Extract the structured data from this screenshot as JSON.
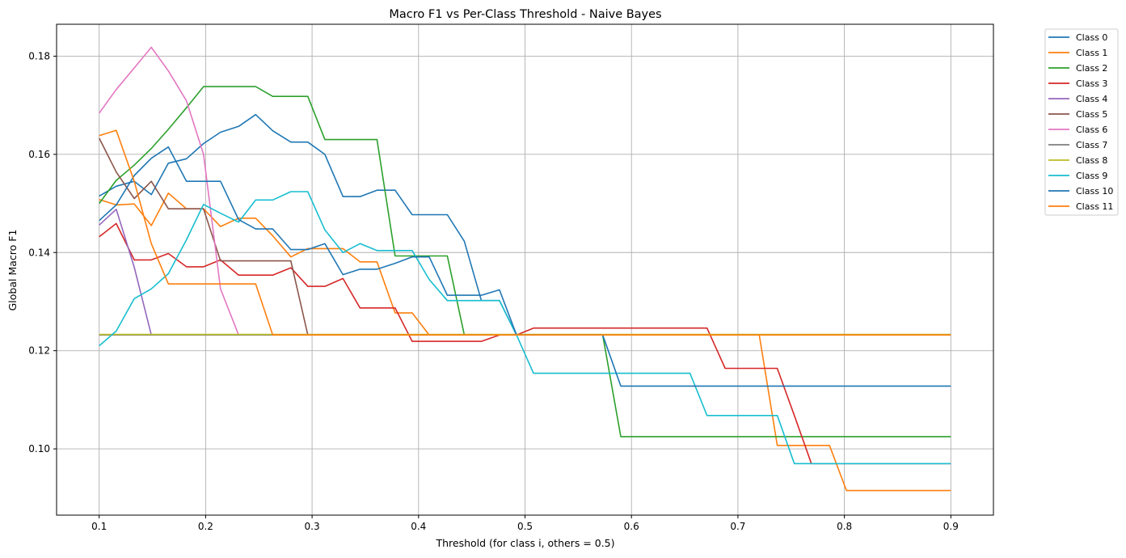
{
  "chart_data": {
    "type": "line",
    "title": "Macro F1 vs Per-Class Threshold - Naive Bayes",
    "xlabel": "Threshold (for class i, others = 0.5)",
    "ylabel": "Global Macro F1",
    "xlim": [
      0.06,
      0.94
    ],
    "ylim": [
      0.0865,
      0.1865
    ],
    "xticks": [
      0.1,
      0.2,
      0.3,
      0.4,
      0.5,
      0.6,
      0.7,
      0.8,
      0.9
    ],
    "xtick_labels": [
      "0.1",
      "0.2",
      "0.3",
      "0.4",
      "0.5",
      "0.6",
      "0.7",
      "0.8",
      "0.9"
    ],
    "yticks": [
      0.1,
      0.12,
      0.14,
      0.16,
      0.18
    ],
    "ytick_labels": [
      "0.10",
      "0.12",
      "0.14",
      "0.16",
      "0.18"
    ],
    "grid": true,
    "legend_position": "outside-top-right",
    "x": [
      0.1,
      0.116,
      0.133,
      0.149,
      0.165,
      0.182,
      0.198,
      0.214,
      0.231,
      0.247,
      0.263,
      0.28,
      0.296,
      0.312,
      0.329,
      0.345,
      0.361,
      0.378,
      0.394,
      0.41,
      0.427,
      0.443,
      0.459,
      0.476,
      0.492,
      0.508,
      0.524,
      0.541,
      0.557,
      0.573,
      0.59,
      0.606,
      0.622,
      0.639,
      0.655,
      0.671,
      0.688,
      0.704,
      0.72,
      0.737,
      0.753,
      0.769,
      0.786,
      0.802,
      0.818,
      0.835,
      0.851,
      0.867,
      0.884,
      0.9
    ],
    "series": [
      {
        "name": "Class 0",
        "color": "#1f77b4",
        "values": [
          0.1515,
          0.1535,
          0.1545,
          0.1518,
          0.1582,
          0.1591,
          0.1622,
          0.1645,
          0.1657,
          0.1681,
          0.1648,
          0.1625,
          0.1625,
          0.16,
          0.1514,
          0.1514,
          0.1527,
          0.1527,
          0.1477,
          0.1477,
          0.1477,
          0.1423,
          0.1302,
          0.1302,
          0.1232,
          0.1232,
          0.1232,
          0.1232,
          0.1232,
          0.1232,
          0.1232,
          0.1232,
          0.1232,
          0.1232,
          0.1232,
          0.1232,
          0.1232,
          0.1232,
          0.1232,
          0.1232,
          0.1232,
          0.1232,
          0.1232,
          0.1232,
          0.1232,
          0.1232,
          0.1232,
          0.1232,
          0.1232,
          0.1232
        ]
      },
      {
        "name": "Class 1",
        "color": "#ff7f0e",
        "values": [
          0.1508,
          0.1497,
          0.1499,
          0.1455,
          0.1521,
          0.1489,
          0.1489,
          0.1453,
          0.147,
          0.147,
          0.1434,
          0.1391,
          0.1408,
          0.1408,
          0.1408,
          0.1381,
          0.1381,
          0.1277,
          0.1277,
          0.1232,
          0.1232,
          0.1232,
          0.1232,
          0.1232,
          0.1232,
          0.1232,
          0.1232,
          0.1232,
          0.1232,
          0.1232,
          0.1232,
          0.1232,
          0.1232,
          0.1232,
          0.1232,
          0.1232,
          0.1232,
          0.1232,
          0.1232,
          0.1007,
          0.1007,
          0.1007,
          0.1007,
          0.0915,
          0.0915,
          0.0915,
          0.0915,
          0.0915,
          0.0915,
          0.0915
        ]
      },
      {
        "name": "Class 2",
        "color": "#2ca02c",
        "values": [
          0.15,
          0.1547,
          0.1578,
          0.1612,
          0.1651,
          0.1695,
          0.1738,
          0.1738,
          0.1738,
          0.1738,
          0.1718,
          0.1718,
          0.1718,
          0.163,
          0.163,
          0.163,
          0.163,
          0.1393,
          0.1393,
          0.1393,
          0.1393,
          0.1232,
          0.1232,
          0.1232,
          0.1232,
          0.1232,
          0.1232,
          0.1232,
          0.1232,
          0.1232,
          0.1025,
          0.1025,
          0.1025,
          0.1025,
          0.1025,
          0.1025,
          0.1025,
          0.1025,
          0.1025,
          0.1025,
          0.1025,
          0.1025,
          0.1025,
          0.1025,
          0.1025,
          0.1025,
          0.1025,
          0.1025,
          0.1025,
          0.1025
        ]
      },
      {
        "name": "Class 3",
        "color": "#d62728",
        "values": [
          0.1432,
          0.1459,
          0.1385,
          0.1385,
          0.1398,
          0.1371,
          0.1371,
          0.1385,
          0.1354,
          0.1354,
          0.1354,
          0.1369,
          0.1331,
          0.1331,
          0.1347,
          0.1287,
          0.1287,
          0.1287,
          0.1219,
          0.1219,
          0.1219,
          0.1219,
          0.1219,
          0.1232,
          0.1232,
          0.1246,
          0.1246,
          0.1246,
          0.1246,
          0.1246,
          0.1246,
          0.1246,
          0.1246,
          0.1246,
          0.1246,
          0.1246,
          0.1164,
          0.1164,
          0.1164,
          0.1164,
          0.1068,
          0.097,
          0.097,
          0.097,
          0.097,
          0.097,
          0.097,
          0.097,
          0.097,
          0.097
        ]
      },
      {
        "name": "Class 4",
        "color": "#9467bd",
        "values": [
          0.1456,
          0.1488,
          0.137,
          0.1232,
          0.1232,
          0.1232,
          0.1232,
          0.1232,
          0.1232,
          0.1232,
          0.1232,
          0.1232,
          0.1232,
          0.1232,
          0.1232,
          0.1232,
          0.1232,
          0.1232,
          0.1232,
          0.1232,
          0.1232,
          0.1232,
          0.1232,
          0.1232,
          0.1232,
          0.1232,
          0.1232,
          0.1232,
          0.1232,
          0.1232,
          0.1232,
          0.1232,
          0.1232,
          0.1232,
          0.1232,
          0.1232,
          0.1232,
          0.1232,
          0.1232,
          0.1232,
          0.1232,
          0.1232,
          0.1232,
          0.1232,
          0.1232,
          0.1232,
          0.1232,
          0.1232,
          0.1232,
          0.1232
        ]
      },
      {
        "name": "Class 5",
        "color": "#8c564b",
        "values": [
          0.1633,
          0.1564,
          0.151,
          0.1545,
          0.1489,
          0.1489,
          0.1489,
          0.1383,
          0.1383,
          0.1383,
          0.1383,
          0.1383,
          0.1232,
          0.1232,
          0.1232,
          0.1232,
          0.1232,
          0.1232,
          0.1232,
          0.1232,
          0.1232,
          0.1232,
          0.1232,
          0.1232,
          0.1232,
          0.1232,
          0.1232,
          0.1232,
          0.1232,
          0.1232,
          0.1232,
          0.1232,
          0.1232,
          0.1232,
          0.1232,
          0.1232,
          0.1232,
          0.1232,
          0.1232,
          0.1232,
          0.1232,
          0.1232,
          0.1232,
          0.1232,
          0.1232,
          0.1232,
          0.1232,
          0.1232,
          0.1232,
          0.1232
        ]
      },
      {
        "name": "Class 6",
        "color": "#e377c2",
        "values": [
          0.1684,
          0.1732,
          0.1776,
          0.1818,
          0.177,
          0.1709,
          0.16,
          0.1326,
          0.1232,
          0.1232,
          0.1232,
          0.1232,
          0.1232,
          0.1232,
          0.1232,
          0.1232,
          0.1232,
          0.1232,
          0.1232,
          0.1232,
          0.1232,
          0.1232,
          0.1232,
          0.1232,
          0.1232,
          0.1232,
          0.1232,
          0.1232,
          0.1232,
          0.1232,
          0.1232,
          0.1232,
          0.1232,
          0.1232,
          0.1232,
          0.1232,
          0.1232,
          0.1232,
          0.1232,
          0.1232,
          0.1232,
          0.1232,
          0.1232,
          0.1232,
          0.1232,
          0.1232,
          0.1232,
          0.1232,
          0.1232,
          0.1232
        ]
      },
      {
        "name": "Class 7",
        "color": "#7f7f7f",
        "values": [
          0.1232,
          0.1232,
          0.1232,
          0.1232,
          0.1232,
          0.1232,
          0.1232,
          0.1232,
          0.1232,
          0.1232,
          0.1232,
          0.1232,
          0.1232,
          0.1232,
          0.1232,
          0.1232,
          0.1232,
          0.1232,
          0.1232,
          0.1232,
          0.1232,
          0.1232,
          0.1232,
          0.1232,
          0.1232,
          0.1232,
          0.1232,
          0.1232,
          0.1232,
          0.1232,
          0.1232,
          0.1232,
          0.1232,
          0.1232,
          0.1232,
          0.1232,
          0.1232,
          0.1232,
          0.1232,
          0.1232,
          0.1232,
          0.1232,
          0.1232,
          0.1232,
          0.1232,
          0.1232,
          0.1232,
          0.1232,
          0.1232,
          0.1232
        ]
      },
      {
        "name": "Class 8",
        "color": "#bcbd22",
        "values": [
          0.1233,
          0.1233,
          0.1233,
          0.1233,
          0.1233,
          0.1233,
          0.1233,
          0.1233,
          0.1233,
          0.1233,
          0.1233,
          0.1233,
          0.1233,
          0.1233,
          0.1233,
          0.1233,
          0.1233,
          0.1233,
          0.1233,
          0.1233,
          0.1233,
          0.1233,
          0.1233,
          0.1233,
          0.1233,
          0.1233,
          0.1233,
          0.1233,
          0.1233,
          0.1233,
          0.1233,
          0.1233,
          0.1233,
          0.1233,
          0.1233,
          0.1233,
          0.1233,
          0.1233,
          0.1233,
          0.1233,
          0.1233,
          0.1233,
          0.1233,
          0.1233,
          0.1233,
          0.1233,
          0.1233,
          0.1233,
          0.1233,
          0.1233
        ]
      },
      {
        "name": "Class 9",
        "color": "#17becf",
        "values": [
          0.121,
          0.124,
          0.1306,
          0.1326,
          0.1357,
          0.1426,
          0.1498,
          0.148,
          0.1462,
          0.1507,
          0.1507,
          0.1524,
          0.1524,
          0.1446,
          0.14,
          0.1418,
          0.1404,
          0.1404,
          0.1404,
          0.1345,
          0.1302,
          0.1302,
          0.1302,
          0.1302,
          0.1232,
          0.1154,
          0.1154,
          0.1154,
          0.1154,
          0.1154,
          0.1154,
          0.1154,
          0.1154,
          0.1154,
          0.1154,
          0.1068,
          0.1068,
          0.1068,
          0.1068,
          0.1068,
          0.097,
          0.097,
          0.097,
          0.097,
          0.097,
          0.097,
          0.097,
          0.097,
          0.097,
          0.097
        ]
      },
      {
        "name": "Class 10",
        "color": "#1f77b4",
        "values": [
          0.1465,
          0.1497,
          0.1557,
          0.1592,
          0.1615,
          0.1545,
          0.1545,
          0.1545,
          0.1467,
          0.1448,
          0.1448,
          0.1406,
          0.1406,
          0.1418,
          0.1355,
          0.1366,
          0.1366,
          0.1378,
          0.1391,
          0.1391,
          0.1313,
          0.1313,
          0.1313,
          0.1324,
          0.1232,
          0.1232,
          0.1232,
          0.1232,
          0.1232,
          0.1232,
          0.1128,
          0.1128,
          0.1128,
          0.1128,
          0.1128,
          0.1128,
          0.1128,
          0.1128,
          0.1128,
          0.1128,
          0.1128,
          0.1128,
          0.1128,
          0.1128,
          0.1128,
          0.1128,
          0.1128,
          0.1128,
          0.1128,
          0.1128
        ]
      },
      {
        "name": "Class 11",
        "color": "#ff7f0e",
        "values": [
          0.1638,
          0.1649,
          0.1545,
          0.1418,
          0.1336,
          0.1336,
          0.1336,
          0.1336,
          0.1336,
          0.1336,
          0.1232,
          0.1232,
          0.1232,
          0.1232,
          0.1232,
          0.1232,
          0.1232,
          0.1232,
          0.1232,
          0.1232,
          0.1232,
          0.1232,
          0.1232,
          0.1232,
          0.1232,
          0.1232,
          0.1232,
          0.1232,
          0.1232,
          0.1232,
          0.1232,
          0.1232,
          0.1232,
          0.1232,
          0.1232,
          0.1232,
          0.1232,
          0.1232,
          0.1232,
          0.1232,
          0.1232,
          0.1232,
          0.1232,
          0.1232,
          0.1232,
          0.1232,
          0.1232,
          0.1232,
          0.1232,
          0.1232
        ]
      }
    ]
  }
}
